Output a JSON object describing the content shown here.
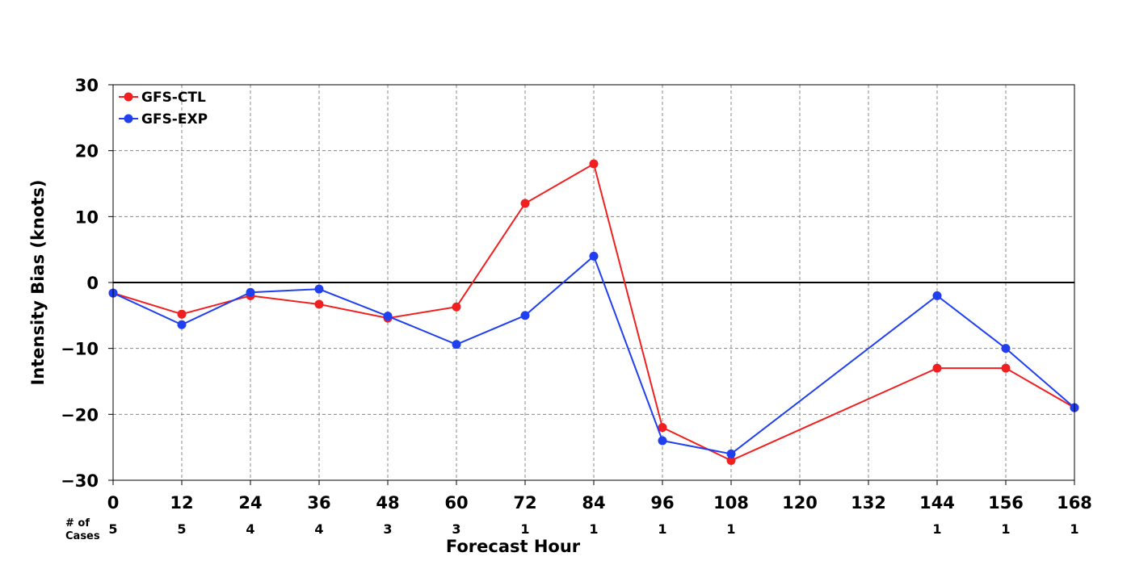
{
  "chart_data": {
    "type": "line",
    "xlabel": "Forecast Hour",
    "ylabel": "Intensity Bias (knots)",
    "xlim": [
      0,
      168
    ],
    "ylim": [
      -30,
      30
    ],
    "x_ticks": [
      0,
      12,
      24,
      36,
      48,
      60,
      72,
      84,
      96,
      108,
      120,
      132,
      144,
      156,
      168
    ],
    "y_ticks": [
      -30,
      -20,
      -10,
      0,
      10,
      20,
      30
    ],
    "grid": true,
    "legend_position": "top-left",
    "cases_label": [
      "# of",
      "Cases"
    ],
    "cases": [
      {
        "x": 0,
        "n": "5"
      },
      {
        "x": 12,
        "n": "5"
      },
      {
        "x": 24,
        "n": "4"
      },
      {
        "x": 36,
        "n": "4"
      },
      {
        "x": 48,
        "n": "3"
      },
      {
        "x": 60,
        "n": "3"
      },
      {
        "x": 72,
        "n": "1"
      },
      {
        "x": 84,
        "n": "1"
      },
      {
        "x": 96,
        "n": "1"
      },
      {
        "x": 108,
        "n": "1"
      },
      {
        "x": 144,
        "n": "1"
      },
      {
        "x": 156,
        "n": "1"
      },
      {
        "x": 168,
        "n": "1"
      }
    ],
    "series": [
      {
        "name": "GFS-CTL",
        "color": "#f02020",
        "x": [
          0,
          12,
          24,
          36,
          48,
          60,
          72,
          84,
          96,
          108,
          144,
          156,
          168
        ],
        "y": [
          -1.6,
          -4.8,
          -2,
          -3.3,
          -5.4,
          -3.7,
          12,
          18,
          -22,
          -27,
          -13,
          -13,
          -19
        ]
      },
      {
        "name": "GFS-EXP",
        "color": "#2040f0",
        "x": [
          0,
          12,
          24,
          36,
          48,
          60,
          72,
          84,
          96,
          108,
          144,
          156,
          168
        ],
        "y": [
          -1.6,
          -6.4,
          -1.5,
          -1,
          -5.1,
          -9.4,
          -5,
          4,
          -24,
          -26,
          -2,
          -10,
          -19
        ]
      }
    ]
  }
}
